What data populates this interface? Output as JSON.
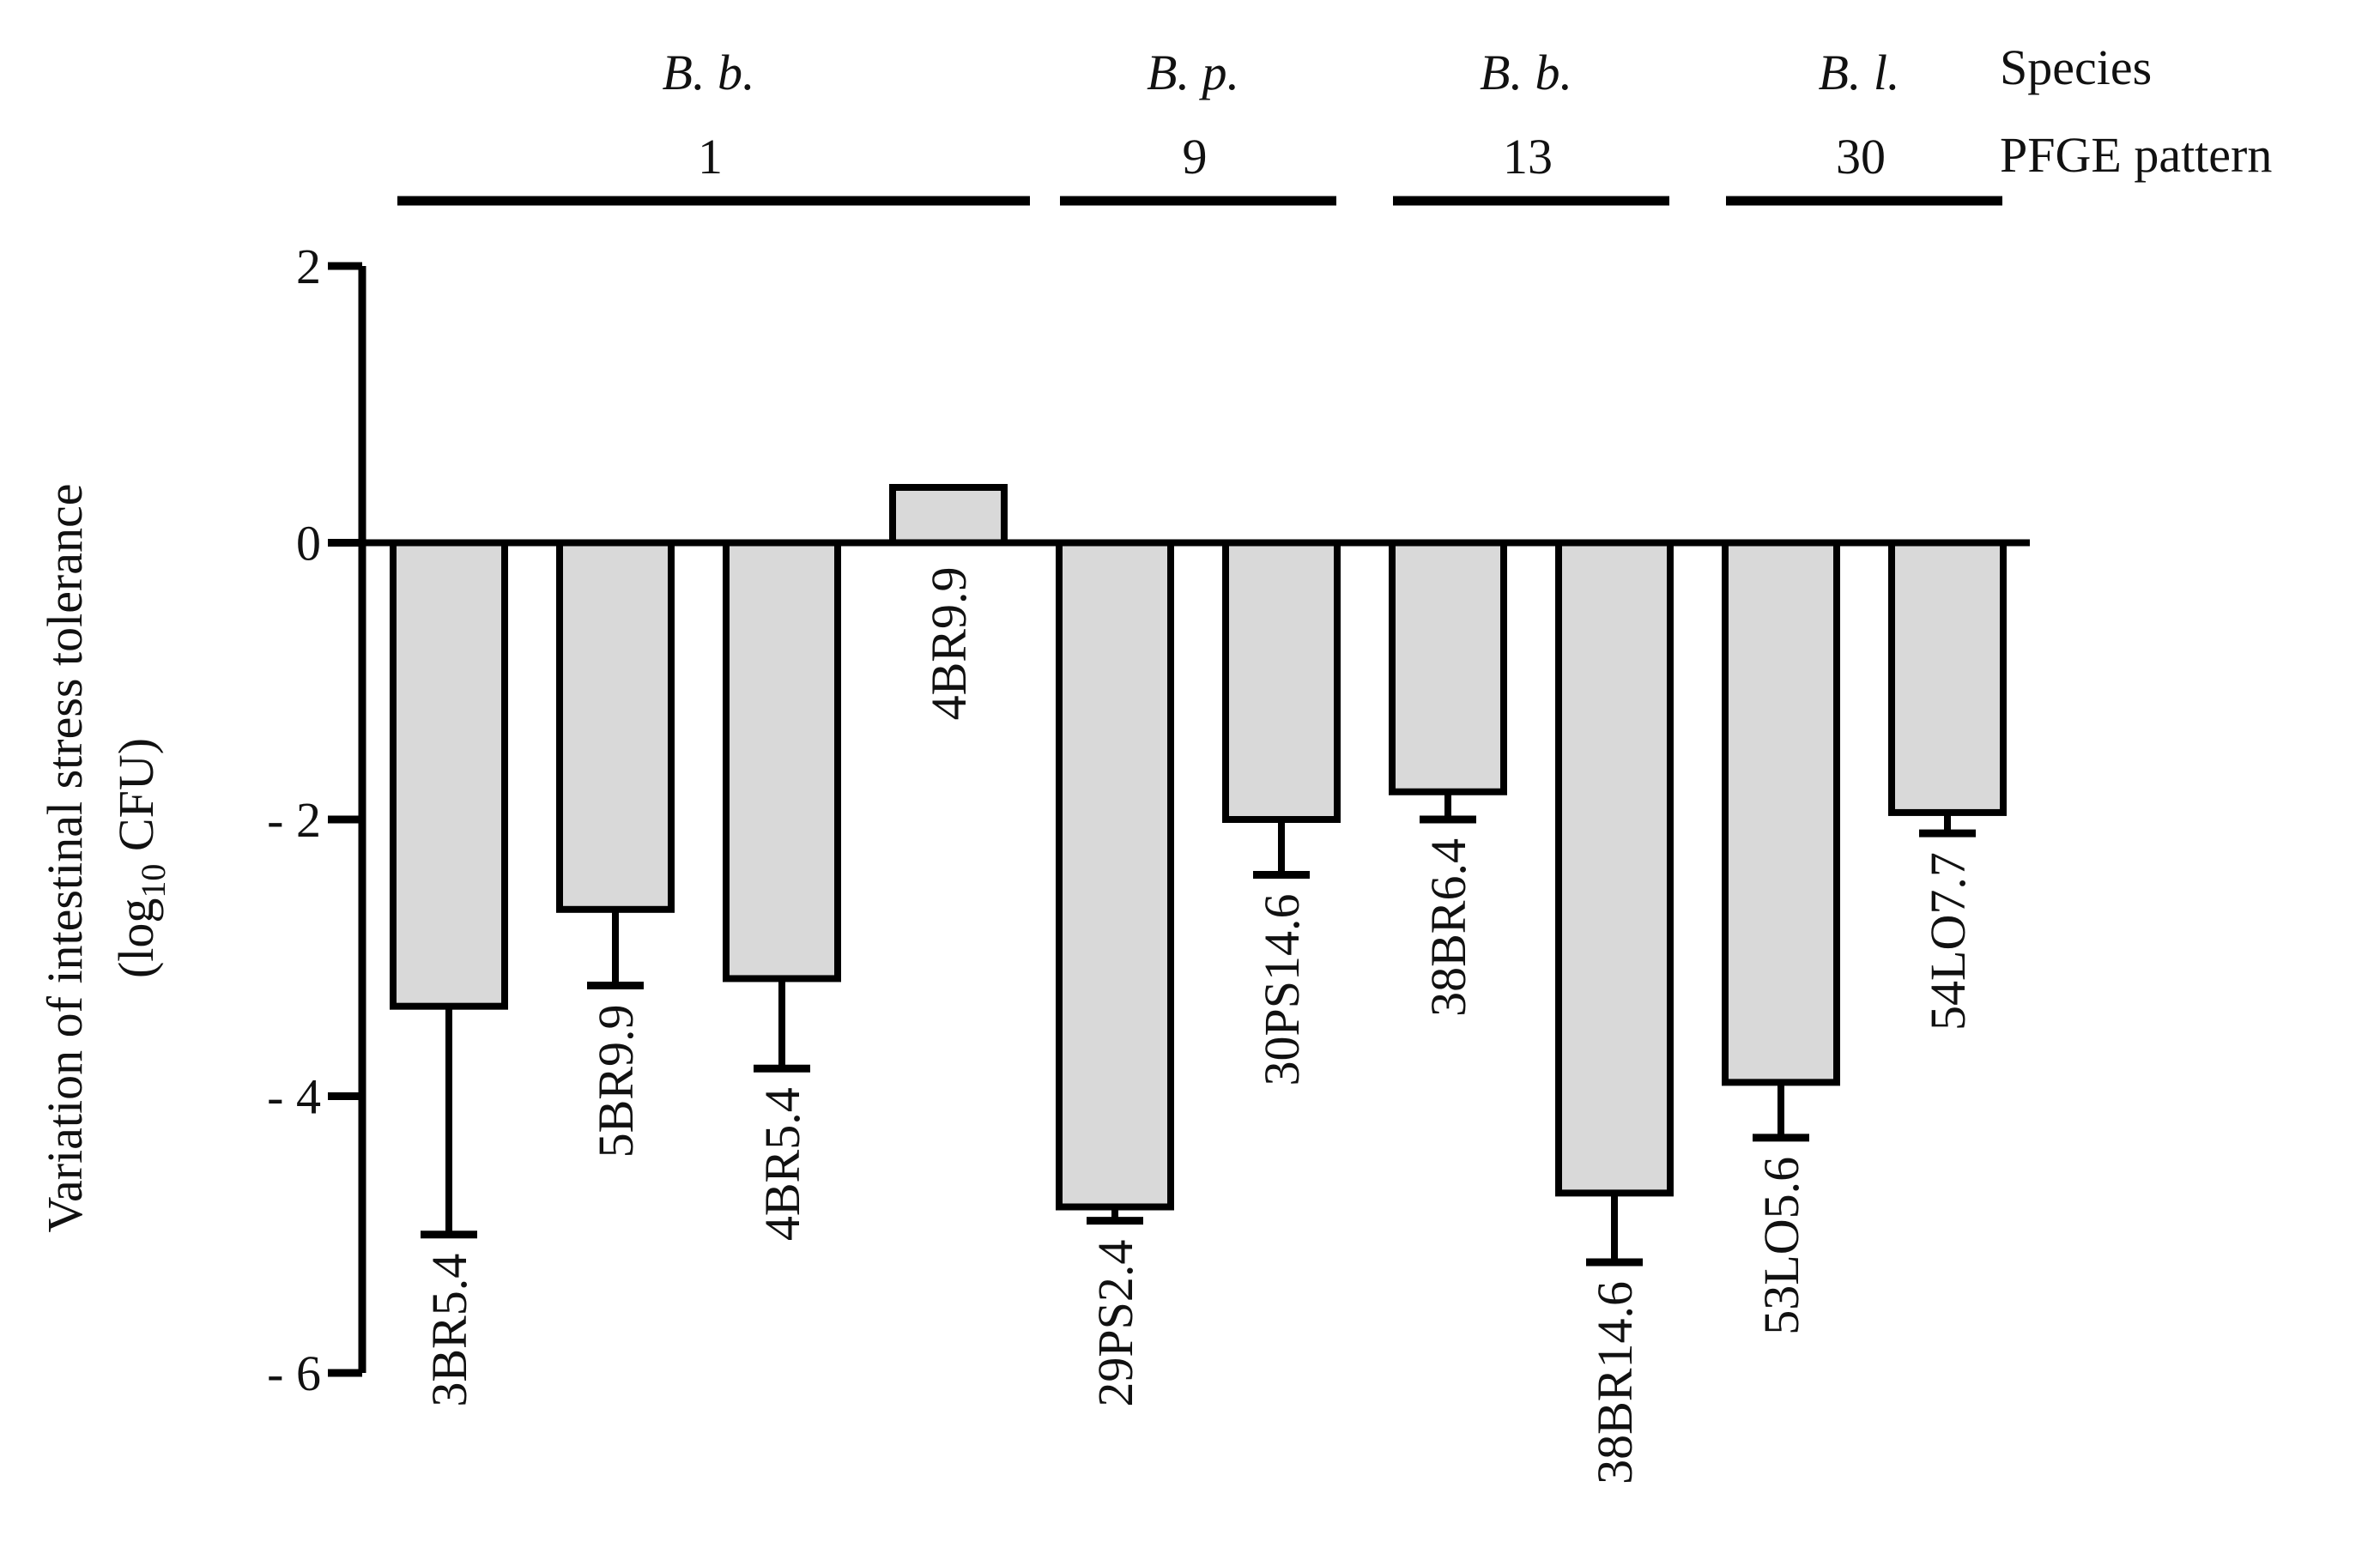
{
  "chart_data": {
    "type": "bar",
    "ylabel": "Variation of intestinal stress tolerance",
    "ylabel_unit_prefix": "(log",
    "ylabel_unit_sub": "10",
    "ylabel_unit_suffix": " CFU)",
    "ylim": [
      -6,
      2
    ],
    "yticks": [
      2,
      0,
      -2,
      -4,
      -6
    ],
    "ytick_labels": [
      "2",
      "0",
      "- 2",
      "- 4",
      "- 6"
    ],
    "grid": false,
    "categories": [
      "3BR5.4",
      "5BR9.9",
      "4BR5.4",
      "4BR9.9",
      "29PS2.4",
      "30PS14.6",
      "38BR6.4",
      "38BR14.6",
      "53LO5.6",
      "54LO7.7"
    ],
    "series": [
      {
        "values": [
          -3.35,
          -2.65,
          -3.15,
          0.4,
          -4.8,
          -2.0,
          -1.8,
          -4.7,
          -3.9,
          -1.95
        ],
        "errors": [
          1.65,
          0.55,
          0.65,
          0.0,
          0.1,
          0.4,
          0.2,
          0.5,
          0.4,
          0.15
        ]
      }
    ],
    "bar_color": "#d9d9d9",
    "edge_color": "#000000",
    "header_labels": {
      "species": "Species",
      "pfge": "PFGE pattern"
    },
    "groups": [
      {
        "species": "B. b.",
        "pfge": "1",
        "first": 0,
        "last": 3
      },
      {
        "species": "B. p.",
        "pfge": "9",
        "first": 4,
        "last": 5
      },
      {
        "species": "B. b.",
        "pfge": "13",
        "first": 6,
        "last": 7
      },
      {
        "species": "B. l.",
        "pfge": "30",
        "first": 8,
        "last": 9
      }
    ]
  }
}
